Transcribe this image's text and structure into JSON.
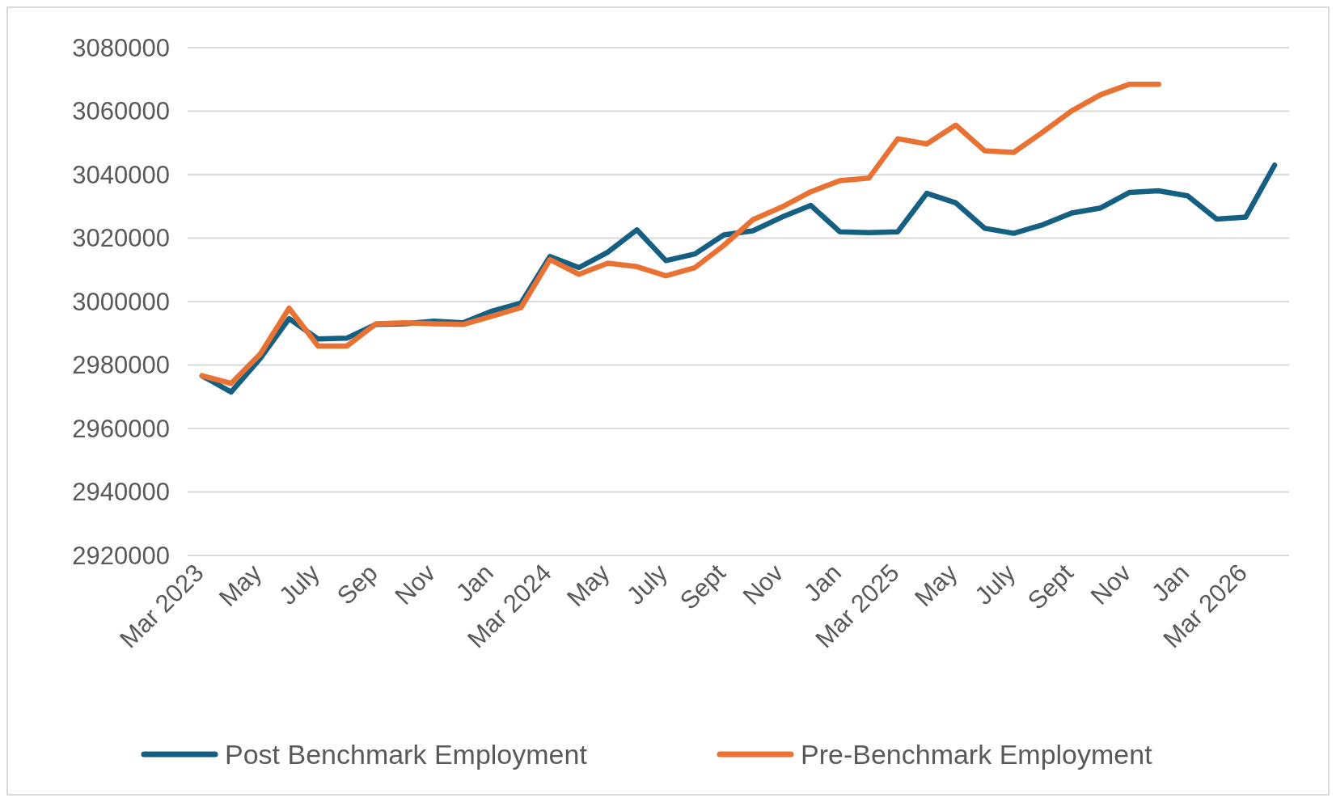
{
  "chart_data": {
    "type": "line",
    "categories": [
      "Mar 2023",
      null,
      "May",
      null,
      "July",
      null,
      "Sep",
      null,
      "Nov",
      null,
      "Jan",
      null,
      "Mar 2024",
      null,
      "May",
      null,
      "July",
      null,
      "Sept",
      null,
      "Nov",
      null,
      "Jan",
      null,
      "Mar 2025",
      null,
      "May",
      null,
      "July",
      null,
      "Sept",
      null,
      "Nov",
      null,
      "Jan",
      null,
      "Mar 2026",
      null
    ],
    "series": [
      {
        "name": "Post Benchmark Employment",
        "color": "#156082",
        "values": [
          2976600,
          2971500,
          2982000,
          2994600,
          2988200,
          2988500,
          2992800,
          2993000,
          2993800,
          2993300,
          2997000,
          2999500,
          3014200,
          3010700,
          3015600,
          3022600,
          3012900,
          3015000,
          3021000,
          3022300,
          3026600,
          3030300,
          3022000,
          3021700,
          3022000,
          3034100,
          3031100,
          3023100,
          3021500,
          3024200,
          3027900,
          3029500,
          3034400,
          3034900,
          3033300,
          3026000,
          3026600,
          3043000
        ]
      },
      {
        "name": "Pre-Benchmark Employment",
        "color": "#e97132",
        "values": [
          2976600,
          2974200,
          2983400,
          2997900,
          2986000,
          2986000,
          2993000,
          2993300,
          2993000,
          2992800,
          2995400,
          2998100,
          3013200,
          3008600,
          3012100,
          3011000,
          3008100,
          3010700,
          3017700,
          3025800,
          3029800,
          3034600,
          3038100,
          3038900,
          3051300,
          3049700,
          3055600,
          3047500,
          3047000,
          3053400,
          3060100,
          3065200,
          3068500,
          3068500,
          null,
          null,
          null,
          null
        ]
      }
    ],
    "ylim": [
      2920000,
      3080000
    ],
    "yticks": [
      2920000,
      2940000,
      2960000,
      2980000,
      3000000,
      3020000,
      3040000,
      3060000,
      3080000
    ],
    "grid": "y",
    "legend": "bottom",
    "marker": "none",
    "line_style": "solid"
  }
}
